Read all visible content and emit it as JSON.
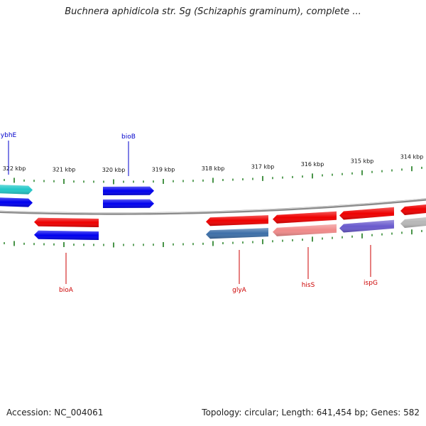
{
  "title": "Buchnera aphidicola str. Sg (Schizaphis graminum), complete ...",
  "footer": {
    "accession": "Accession: NC_004061",
    "summary": "Topology: circular; Length: 641,454 bp; Genes: 582"
  },
  "colors": {
    "backbone": "#8a8a8a",
    "tick": "#1a7a1a",
    "forward_label": "#0000cc",
    "reverse_label": "#cc0000"
  },
  "ticks": [
    {
      "kbp": 322,
      "label": "322 kbp"
    },
    {
      "kbp": 321,
      "label": "321 kbp"
    },
    {
      "kbp": 320,
      "label": "320 kbp"
    },
    {
      "kbp": 319,
      "label": "319 kbp"
    },
    {
      "kbp": 318,
      "label": "318 kbp"
    },
    {
      "kbp": 317,
      "label": "317 kbp"
    },
    {
      "kbp": 316,
      "label": "316 kbp"
    },
    {
      "kbp": 315,
      "label": "315 kbp"
    },
    {
      "kbp": 314,
      "label": "314 kbp"
    }
  ],
  "gene_labels": [
    {
      "id": "ybhE",
      "text": "ybhE",
      "strand": "forward"
    },
    {
      "id": "bioB",
      "text": "bioB",
      "strand": "forward"
    },
    {
      "id": "bioA",
      "text": "bioA",
      "strand": "reverse"
    },
    {
      "id": "glyA",
      "text": "glyA",
      "strand": "reverse"
    },
    {
      "id": "hisS",
      "text": "hisS",
      "strand": "reverse"
    },
    {
      "id": "ispG",
      "text": "ispG",
      "strand": "reverse"
    }
  ],
  "features": [
    {
      "name": "ybhE-cds",
      "track": "forward-outer",
      "color": "#22c8c8"
    },
    {
      "name": "ybhE-gene",
      "track": "forward-inner",
      "color": "#0000ee"
    },
    {
      "name": "bioB-cds",
      "track": "forward-outer",
      "color": "#0000ee"
    },
    {
      "name": "bioB-gene",
      "track": "forward-inner",
      "color": "#0000ee"
    },
    {
      "name": "bioA-gene",
      "track": "reverse-outer",
      "color": "#ee0000"
    },
    {
      "name": "bioA-cds",
      "track": "reverse-inner",
      "color": "#0000ee"
    },
    {
      "name": "glyA-gene",
      "track": "reverse-outer",
      "color": "#ee0000"
    },
    {
      "name": "glyA-cds",
      "track": "reverse-inner",
      "color": "#3d6fa8"
    },
    {
      "name": "hisS-gene",
      "track": "reverse-outer",
      "color": "#ee0000"
    },
    {
      "name": "hisS-cds",
      "track": "reverse-inner",
      "color": "#f08a8a"
    },
    {
      "name": "ispG-gene",
      "track": "reverse-outer",
      "color": "#ee0000"
    },
    {
      "name": "ispG-cds",
      "track": "reverse-inner",
      "color": "#6a5acd"
    },
    {
      "name": "next-gene",
      "track": "reverse-outer",
      "color": "#ee0000"
    },
    {
      "name": "next-cds",
      "track": "reverse-inner",
      "color": "#b8b8b8"
    }
  ]
}
